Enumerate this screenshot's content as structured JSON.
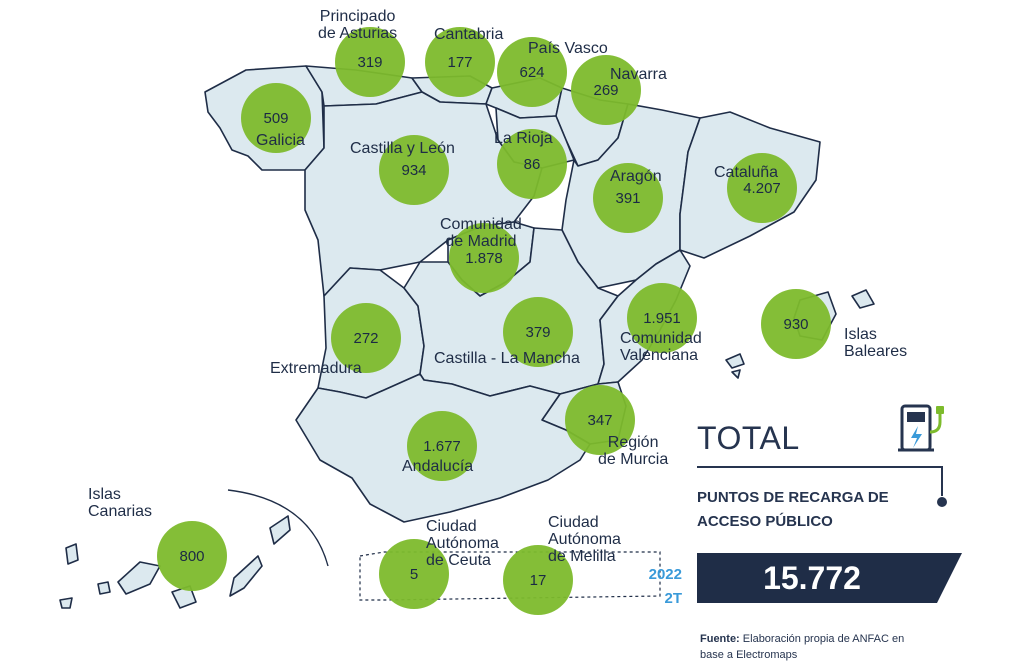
{
  "regions": [
    {
      "name": "Principado de Asturias",
      "value": "319"
    },
    {
      "name": "Cantabria",
      "value": "177"
    },
    {
      "name": "País Vasco",
      "value": "624"
    },
    {
      "name": "Navarra",
      "value": "269"
    },
    {
      "name": "Galicia",
      "value": "509"
    },
    {
      "name": "Castilla y León",
      "value": "934"
    },
    {
      "name": "La Rioja",
      "value": "86"
    },
    {
      "name": "Aragón",
      "value": "391"
    },
    {
      "name": "Cataluña",
      "value": "4.207"
    },
    {
      "name": "Comunidad de Madrid",
      "value": "1.878"
    },
    {
      "name": "Extremadura",
      "value": "272"
    },
    {
      "name": "Castilla - La Mancha",
      "value": "379"
    },
    {
      "name": "Comunidad Valenciana",
      "value": "1.951"
    },
    {
      "name": "Islas Baleares",
      "value": "930"
    },
    {
      "name": "Región de Murcia",
      "value": "347"
    },
    {
      "name": "Andalucía",
      "value": "1.677"
    },
    {
      "name": "Islas Canarias",
      "value": "800"
    },
    {
      "name": "Ciudad Autónoma de Ceuta",
      "value": "5"
    },
    {
      "name": "Ciudad Autónoma de Melilla",
      "value": "17"
    }
  ],
  "labels": {
    "asturias": [
      "Principado",
      "de Asturias"
    ],
    "cantabria": "Cantabria",
    "pais_vasco": "País Vasco",
    "navarra": "Navarra",
    "galicia": "Galicia",
    "castilla_leon": "Castilla y León",
    "rioja": "La Rioja",
    "aragon": "Aragón",
    "cataluna": "Cataluña",
    "madrid": [
      "Comunidad",
      "de Madrid"
    ],
    "extremadura": "Extremadura",
    "mancha": "Castilla - La Mancha",
    "valenciana": [
      "Comunidad",
      "Valenciana"
    ],
    "baleares": [
      "Islas",
      "Baleares"
    ],
    "murcia": [
      "Región",
      "de Murcia"
    ],
    "andalucia": "Andalucía",
    "canarias": [
      "Islas",
      "Canarias"
    ],
    "ceuta": [
      "Ciudad",
      "Autónoma",
      "de Ceuta"
    ],
    "melilla": [
      "Ciudad",
      "Autónoma",
      "de Melilla"
    ]
  },
  "total": {
    "title": "TOTAL",
    "subtitle_line1": "PUNTOS DE RECARGA DE",
    "subtitle_line2": "ACCESO PÚBLICO",
    "value": "15.772",
    "year": "2022",
    "quarter": "2T"
  },
  "source": {
    "label": "Fuente:",
    "text_line1": " Elaboración propia de ANFAC en",
    "text_line2": "base a Electromaps"
  },
  "colors": {
    "bubble": "#7dbb2c",
    "region_fill": "#dce9ef",
    "outline": "#1f2d47",
    "total_box": "#1f2d47",
    "period": "#3a9ad9"
  },
  "icons": [
    "charging-station-icon"
  ]
}
